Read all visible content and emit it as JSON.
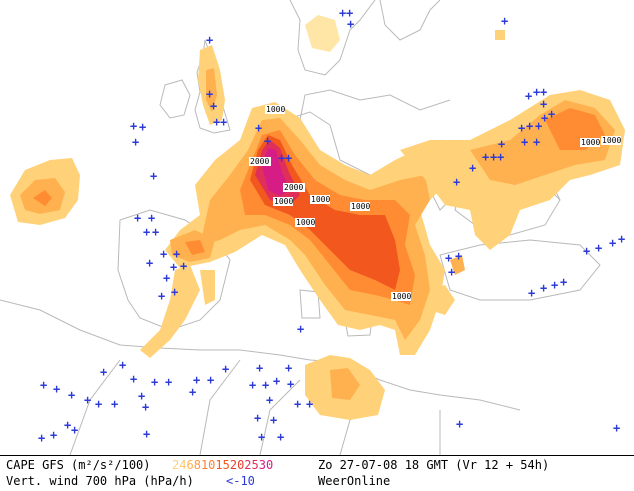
{
  "map": {
    "contour_labels": [
      "1000",
      "1000",
      "2000",
      "2000",
      "1000",
      "1000",
      "1000",
      "1000",
      "1000",
      "1000",
      "1000"
    ],
    "colors": {
      "cape_1": "#ffe6a6",
      "cape_2": "#ffd27a",
      "cape_3": "#ffb14f",
      "cape_4": "#ff8c32",
      "cape_5": "#f2571e",
      "cape_6": "#e0305a",
      "cape_7": "#d61d86",
      "wind_marker": "#2c3bd8",
      "coast": "#b9b9b9"
    },
    "wind_symbol": "+"
  },
  "footer": {
    "line1_left": "CAPE GFS (m²/s²/100)",
    "legend_values": [
      {
        "text": "2",
        "color": "#ffd27a"
      },
      {
        "text": "4",
        "color": "#ffc86a"
      },
      {
        "text": "6",
        "color": "#ffb14f"
      },
      {
        "text": "8",
        "color": "#ff9a3c"
      },
      {
        "text": "10",
        "color": "#ff8032"
      },
      {
        "text": "15",
        "color": "#f2571e"
      },
      {
        "text": "20",
        "color": "#e8402e"
      },
      {
        "text": "25",
        "color": "#e0305a"
      },
      {
        "text": "30",
        "color": "#d61d86"
      }
    ],
    "line1_right": "Zo 27-07-08 18 GMT (Vr 12 + 54h)",
    "line2_left": "Vert. wind 700 hPa (hPa/h)",
    "line2_mid": "<-10",
    "line2_right": "WeerOnline"
  }
}
